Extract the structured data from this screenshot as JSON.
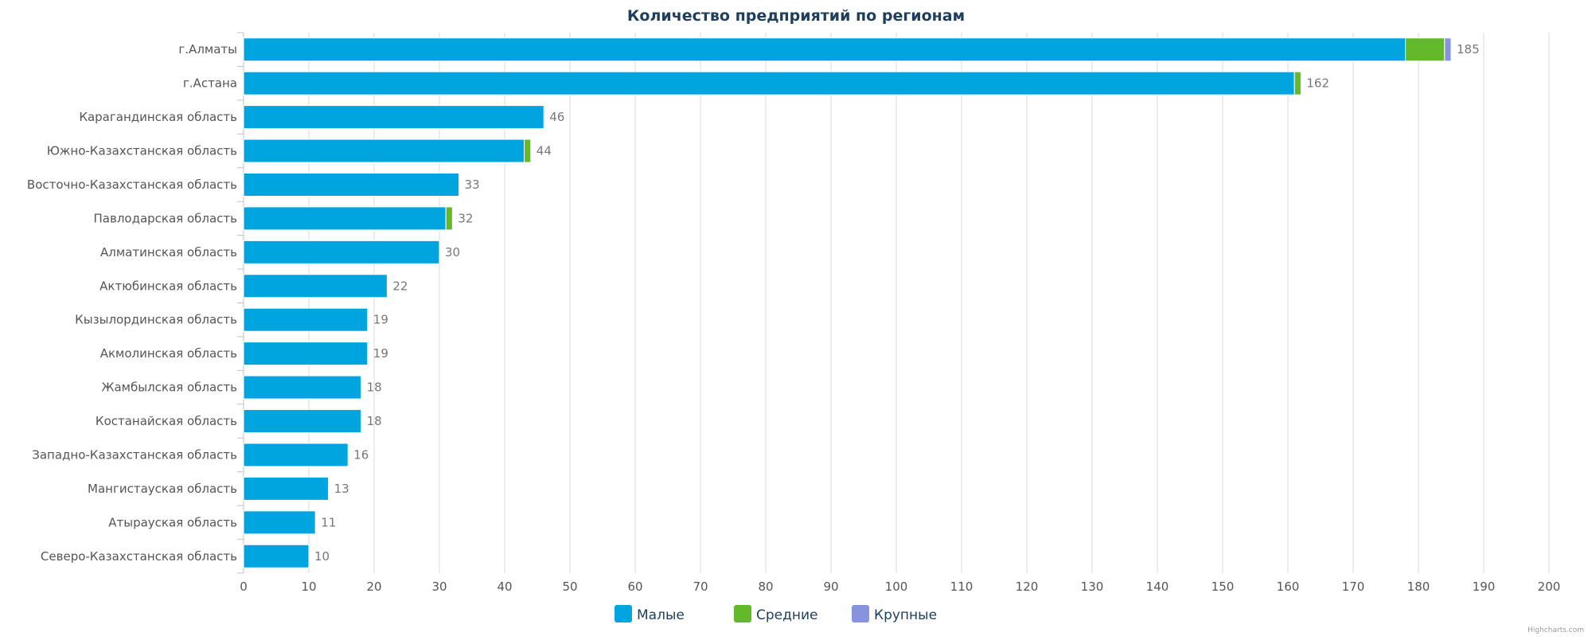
{
  "chart_data": {
    "type": "bar",
    "orientation": "horizontal",
    "stacked": true,
    "title": "Количество предприятий по регионам",
    "categories": [
      "г.Алматы",
      "г.Астана",
      "Карагандинская область",
      "Южно-Казахстанская область",
      "Восточно-Казахстанская область",
      "Павлодарская область",
      "Алматинская область",
      "Актюбинская область",
      "Кызылординская область",
      "Акмолинская область",
      "Жамбылская область",
      "Костанайская область",
      "Западно-Казахстанская область",
      "Мангистауская область",
      "Атырауская область",
      "Северо-Казахстанская область"
    ],
    "series": [
      {
        "name": "Малые",
        "color": "#00a5df",
        "values": [
          178,
          161,
          46,
          43,
          33,
          31,
          30,
          22,
          19,
          19,
          18,
          18,
          16,
          13,
          11,
          10
        ]
      },
      {
        "name": "Средние",
        "color": "#64b92b",
        "values": [
          6,
          1,
          0,
          1,
          0,
          1,
          0,
          0,
          0,
          0,
          0,
          0,
          0,
          0,
          0,
          0
        ]
      },
      {
        "name": "Крупные",
        "color": "#8893de",
        "values": [
          1,
          0,
          0,
          0,
          0,
          0,
          0,
          0,
          0,
          0,
          0,
          0,
          0,
          0,
          0,
          0
        ]
      }
    ],
    "totals": [
      185,
      162,
      46,
      44,
      33,
      32,
      30,
      22,
      19,
      19,
      18,
      18,
      16,
      13,
      11,
      10
    ],
    "xlim": [
      0,
      200
    ],
    "xticks": [
      0,
      10,
      20,
      30,
      40,
      50,
      60,
      70,
      80,
      90,
      100,
      110,
      120,
      130,
      140,
      150,
      160,
      170,
      180,
      190,
      200
    ],
    "grid": true,
    "legend": "bottom-center"
  },
  "credits": "Highcharts.com"
}
